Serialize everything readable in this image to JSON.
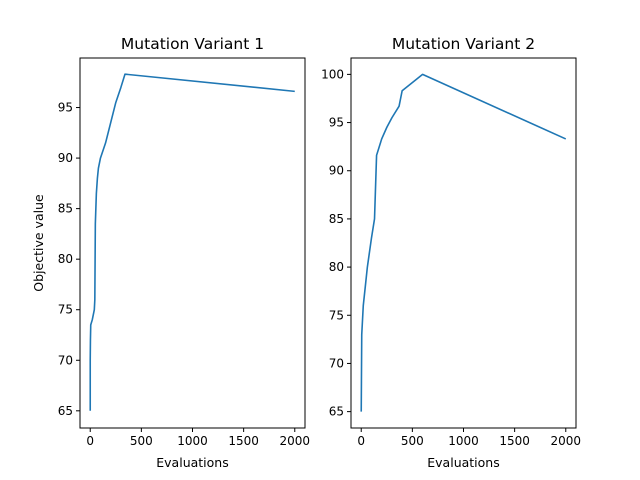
{
  "chart_data": [
    {
      "type": "line",
      "title": "Mutation Variant 1",
      "xlabel": "Evaluations",
      "ylabel": "Objective value",
      "xlim": [
        -100,
        2100
      ],
      "ylim": [
        63.3,
        99.9
      ],
      "xticks": [
        0,
        500,
        1000,
        1500,
        2000
      ],
      "yticks": [
        65,
        70,
        75,
        80,
        85,
        90,
        95
      ],
      "grid": false,
      "color": "#1f77b4",
      "series": [
        {
          "x": [
            0,
            0,
            2,
            5,
            20,
            40,
            45,
            50,
            60,
            70,
            80,
            100,
            150,
            200,
            250,
            300,
            340,
            2000
          ],
          "y": [
            65,
            70,
            72,
            73.5,
            74,
            75,
            76,
            83.5,
            86.5,
            88,
            89,
            90,
            91.5,
            93.5,
            95.5,
            97,
            98.3,
            96.6
          ]
        }
      ]
    },
    {
      "type": "line",
      "title": "Mutation Variant 2",
      "xlabel": "Evaluations",
      "ylabel": "",
      "xlim": [
        -100,
        2100
      ],
      "ylim": [
        63.3,
        101.7
      ],
      "xticks": [
        0,
        500,
        1000,
        1500,
        2000
      ],
      "yticks": [
        65,
        70,
        75,
        80,
        85,
        90,
        95,
        100
      ],
      "grid": false,
      "color": "#1f77b4",
      "series": [
        {
          "x": [
            0,
            5,
            20,
            40,
            60,
            100,
            130,
            150,
            200,
            250,
            300,
            370,
            400,
            600,
            2000
          ],
          "y": [
            65,
            73,
            76,
            78,
            80,
            83,
            85,
            91.6,
            93.3,
            94.5,
            95.5,
            96.7,
            98.3,
            100,
            93.3
          ]
        }
      ]
    }
  ]
}
